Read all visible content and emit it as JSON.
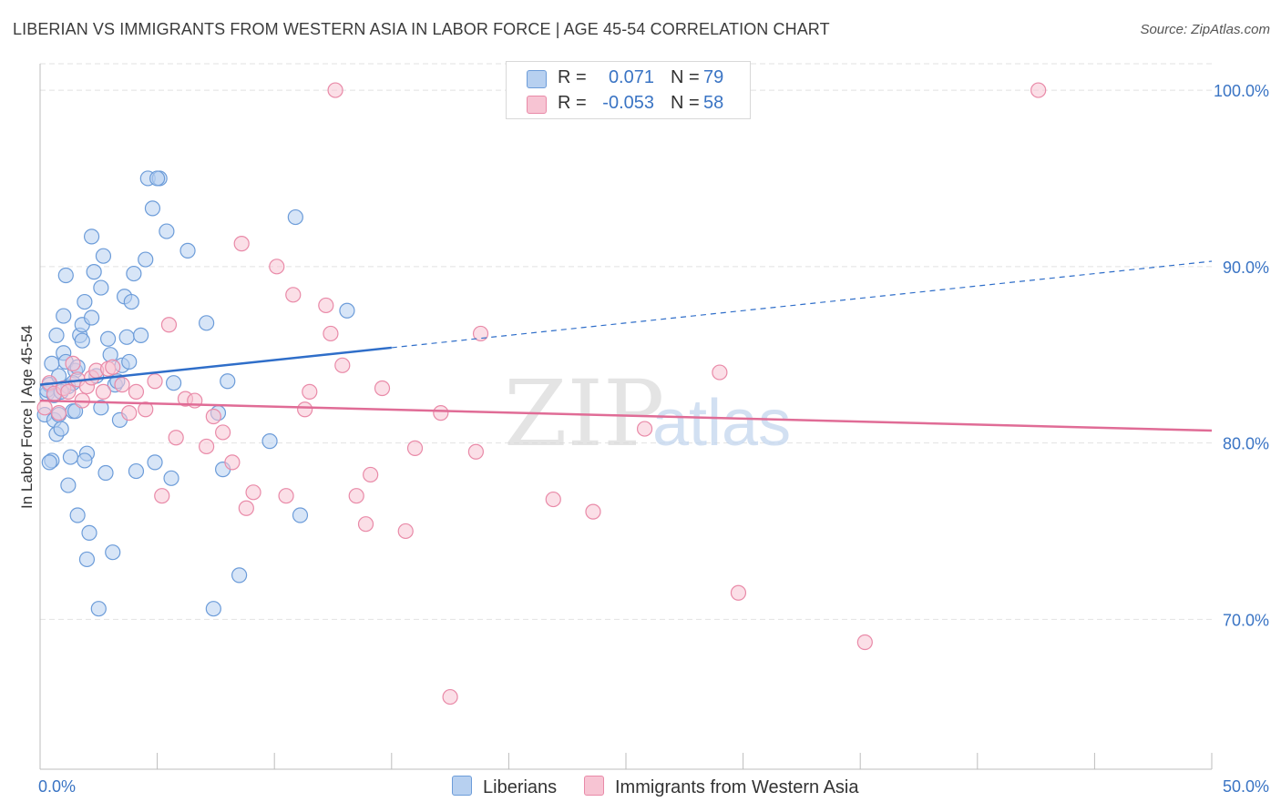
{
  "title": "LIBERIAN VS IMMIGRANTS FROM WESTERN ASIA IN LABOR FORCE | AGE 45-54 CORRELATION CHART",
  "source": "Source: ZipAtlas.com",
  "watermark": {
    "zip": "ZIP",
    "atlas": "atlas"
  },
  "legend": {
    "rows": [
      {
        "r_label": "R =",
        "r_value": "0.071",
        "n_label": "N =",
        "n_value": "79"
      },
      {
        "r_label": "R =",
        "r_value": "-0.053",
        "n_label": "N =",
        "n_value": "58"
      }
    ]
  },
  "colors": {
    "blue_fill": "#b7d0f0",
    "blue_stroke": "#6c9cd9",
    "blue_line": "#2f6ec9",
    "pink_fill": "#f7c4d3",
    "pink_stroke": "#e98aa8",
    "pink_line": "#e06c96",
    "axis_label": "#3a74c4",
    "grid": "#e2e2e2"
  },
  "chart_data": {
    "type": "scatter",
    "title": "LIBERIAN VS IMMIGRANTS FROM WESTERN ASIA IN LABOR FORCE | AGE 45-54 CORRELATION CHART",
    "xlabel": "",
    "ylabel": "In Labor Force | Age 45-54",
    "xlim": [
      0,
      50
    ],
    "ylim": [
      61.5,
      101.5
    ],
    "x_tick_labels": {
      "min": "0.0%",
      "max": "50.0%"
    },
    "y_ticks": [
      {
        "value": 100,
        "label": "100.0%"
      },
      {
        "value": 90,
        "label": "90.0%"
      },
      {
        "value": 80,
        "label": "80.0%"
      },
      {
        "value": 70,
        "label": "70.0%"
      }
    ],
    "x_minor_ticks": [
      5,
      10,
      15,
      20,
      25,
      30,
      35,
      40,
      45,
      50
    ],
    "series": [
      {
        "name": "Liberians",
        "r": 0.071,
        "n": 79,
        "trend": {
          "x0": 0,
          "y0": 83.3,
          "x1": 15,
          "y1": 85.4,
          "dash_to_x": 50,
          "dash_to_y": 90.3
        },
        "points": [
          [
            0.2,
            81.6
          ],
          [
            0.3,
            82.8
          ],
          [
            0.4,
            83.3
          ],
          [
            0.5,
            84.5
          ],
          [
            0.5,
            79.0
          ],
          [
            0.6,
            81.3
          ],
          [
            0.7,
            80.5
          ],
          [
            0.7,
            86.1
          ],
          [
            0.8,
            83.8
          ],
          [
            0.8,
            81.6
          ],
          [
            0.9,
            80.8
          ],
          [
            1.0,
            85.1
          ],
          [
            1.0,
            87.2
          ],
          [
            1.1,
            89.5
          ],
          [
            1.1,
            84.6
          ],
          [
            1.2,
            83.2
          ],
          [
            1.2,
            77.6
          ],
          [
            1.3,
            79.2
          ],
          [
            1.4,
            81.8
          ],
          [
            1.5,
            84.1
          ],
          [
            1.5,
            81.8
          ],
          [
            1.6,
            84.3
          ],
          [
            1.6,
            75.9
          ],
          [
            1.7,
            86.1
          ],
          [
            1.8,
            85.8
          ],
          [
            1.8,
            86.7
          ],
          [
            1.9,
            88.0
          ],
          [
            2.0,
            79.4
          ],
          [
            2.0,
            73.4
          ],
          [
            2.1,
            74.9
          ],
          [
            2.2,
            91.7
          ],
          [
            2.2,
            87.1
          ],
          [
            2.3,
            89.7
          ],
          [
            2.4,
            83.8
          ],
          [
            2.5,
            70.6
          ],
          [
            2.6,
            88.8
          ],
          [
            2.7,
            90.6
          ],
          [
            2.8,
            78.3
          ],
          [
            2.9,
            85.9
          ],
          [
            3.0,
            85.0
          ],
          [
            3.1,
            73.8
          ],
          [
            3.2,
            83.3
          ],
          [
            3.4,
            81.3
          ],
          [
            3.5,
            84.4
          ],
          [
            3.6,
            88.3
          ],
          [
            3.7,
            86.0
          ],
          [
            3.8,
            84.6
          ],
          [
            3.9,
            88.0
          ],
          [
            4.0,
            89.6
          ],
          [
            4.1,
            78.4
          ],
          [
            4.3,
            86.1
          ],
          [
            4.5,
            90.4
          ],
          [
            4.6,
            95.0
          ],
          [
            4.8,
            93.3
          ],
          [
            4.9,
            78.9
          ],
          [
            5.1,
            95.0
          ],
          [
            5.4,
            92.0
          ],
          [
            5.6,
            78.0
          ],
          [
            5.7,
            83.4
          ],
          [
            6.3,
            90.9
          ],
          [
            7.1,
            86.8
          ],
          [
            7.4,
            70.6
          ],
          [
            7.6,
            81.7
          ],
          [
            7.8,
            78.5
          ],
          [
            8.0,
            83.5
          ],
          [
            8.5,
            72.5
          ],
          [
            9.8,
            80.1
          ],
          [
            10.9,
            92.8
          ],
          [
            11.1,
            75.9
          ],
          [
            13.1,
            87.5
          ],
          [
            0.3,
            83.0
          ],
          [
            0.6,
            82.7
          ],
          [
            1.4,
            83.4
          ],
          [
            2.6,
            82.0
          ],
          [
            3.3,
            83.5
          ],
          [
            0.4,
            78.9
          ],
          [
            1.9,
            79.0
          ],
          [
            0.9,
            82.9
          ],
          [
            5.0,
            95.0
          ]
        ]
      },
      {
        "name": "Immigrants from Western Asia",
        "r": -0.053,
        "n": 58,
        "trend": {
          "x0": 0,
          "y0": 82.4,
          "x1": 50,
          "y1": 80.7
        },
        "points": [
          [
            0.2,
            82.0
          ],
          [
            0.4,
            83.4
          ],
          [
            0.6,
            82.8
          ],
          [
            0.8,
            81.7
          ],
          [
            1.0,
            83.1
          ],
          [
            1.2,
            82.9
          ],
          [
            1.4,
            84.5
          ],
          [
            1.6,
            83.6
          ],
          [
            1.8,
            82.4
          ],
          [
            2.0,
            83.2
          ],
          [
            2.2,
            83.7
          ],
          [
            2.4,
            84.1
          ],
          [
            2.7,
            82.9
          ],
          [
            2.9,
            84.2
          ],
          [
            3.1,
            84.3
          ],
          [
            3.5,
            83.3
          ],
          [
            3.8,
            81.7
          ],
          [
            4.1,
            82.9
          ],
          [
            4.5,
            81.9
          ],
          [
            4.9,
            83.5
          ],
          [
            5.2,
            77.0
          ],
          [
            5.5,
            86.7
          ],
          [
            5.8,
            80.3
          ],
          [
            6.2,
            82.5
          ],
          [
            6.6,
            82.4
          ],
          [
            7.1,
            79.8
          ],
          [
            7.4,
            81.5
          ],
          [
            7.8,
            80.6
          ],
          [
            8.2,
            78.9
          ],
          [
            8.6,
            91.3
          ],
          [
            8.8,
            76.3
          ],
          [
            9.1,
            77.2
          ],
          [
            10.1,
            90.0
          ],
          [
            10.5,
            77.0
          ],
          [
            10.8,
            88.4
          ],
          [
            11.3,
            81.9
          ],
          [
            11.5,
            82.9
          ],
          [
            12.2,
            87.8
          ],
          [
            12.4,
            86.2
          ],
          [
            12.9,
            84.4
          ],
          [
            13.5,
            77.0
          ],
          [
            13.9,
            75.4
          ],
          [
            14.1,
            78.2
          ],
          [
            14.6,
            83.1
          ],
          [
            15.6,
            75.0
          ],
          [
            16.0,
            79.7
          ],
          [
            17.1,
            81.7
          ],
          [
            18.6,
            79.5
          ],
          [
            18.8,
            86.2
          ],
          [
            21.9,
            76.8
          ],
          [
            23.6,
            76.1
          ],
          [
            25.8,
            80.8
          ],
          [
            29.0,
            84.0
          ],
          [
            29.8,
            71.5
          ],
          [
            35.2,
            68.7
          ],
          [
            17.5,
            65.6
          ],
          [
            12.6,
            100.0
          ],
          [
            42.6,
            100.0
          ]
        ]
      }
    ]
  }
}
